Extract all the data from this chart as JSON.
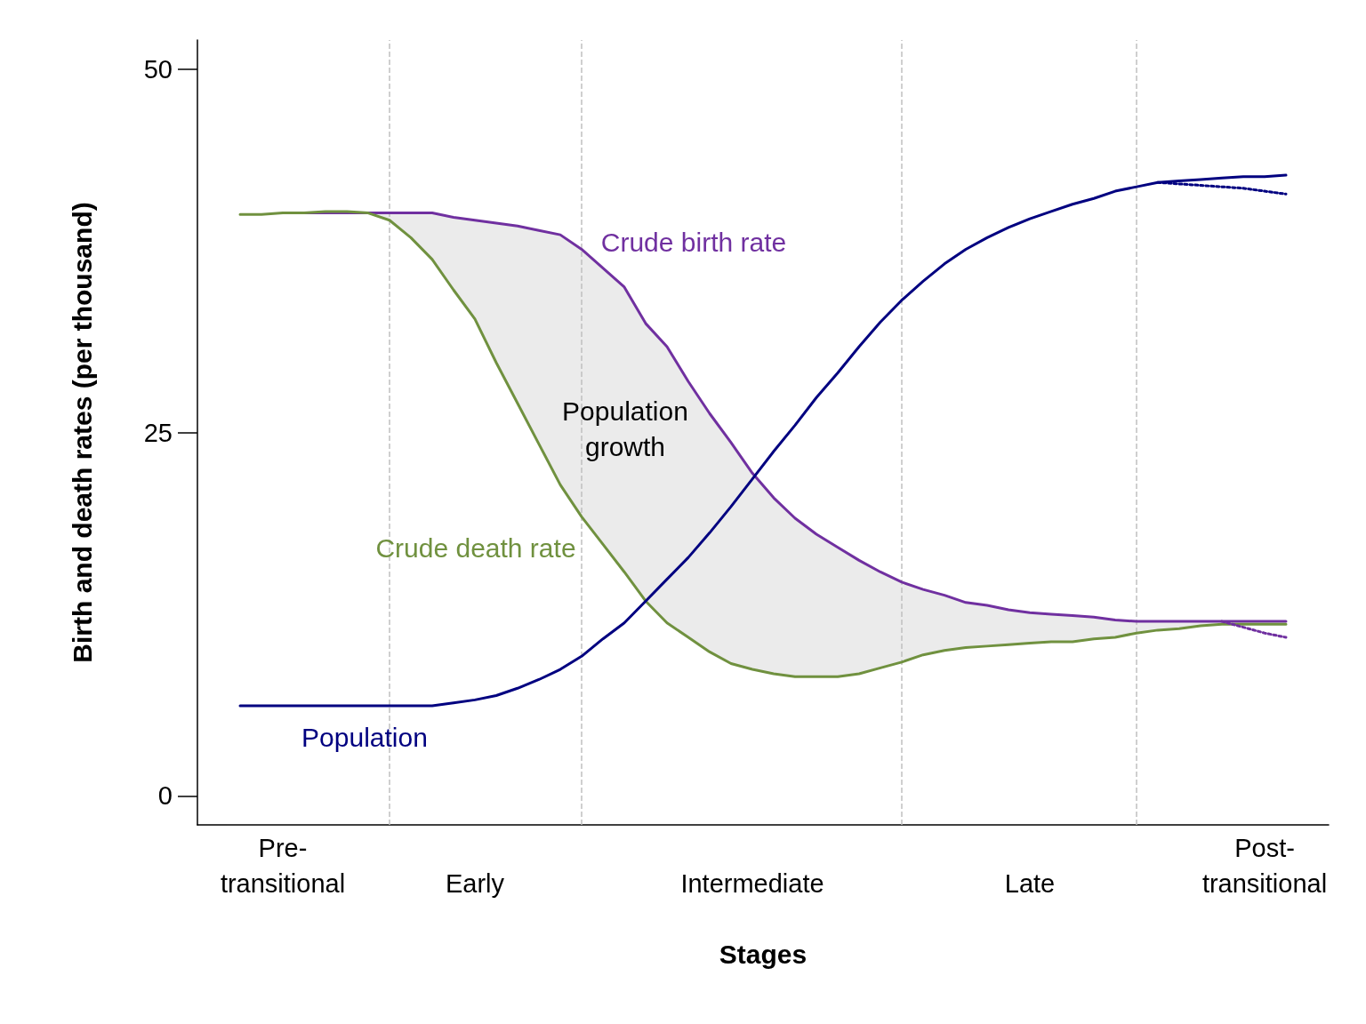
{
  "chart_data": {
    "type": "line",
    "xlabel": "Stages",
    "ylabel": "Birth and death rates (per thousand)",
    "categories": [
      null,
      null,
      null,
      null,
      "Pre-\ntransitional",
      null,
      null,
      null,
      null,
      null,
      null,
      null,
      null,
      "Early",
      null,
      null,
      null,
      null,
      null,
      null,
      null,
      null,
      null,
      null,
      null,
      null,
      "Intermediate",
      null,
      null,
      null,
      null,
      null,
      null,
      null,
      null,
      null,
      null,
      null,
      null,
      "Late",
      null,
      null,
      null,
      null,
      null,
      null,
      null,
      null,
      null,
      null,
      "Post-\ntransitional",
      null,
      null,
      null
    ],
    "ylim": [
      -2,
      52
    ],
    "yticks": [
      0,
      25,
      50
    ],
    "grid": "x",
    "legend": false,
    "marker": "none",
    "annotations": [
      "Population\ngrowth"
    ],
    "series": [
      {
        "name": "Crude birth rate",
        "color": "#7030a0",
        "line_style": "solid",
        "values": [
          null,
          null,
          null,
          null,
          40.1,
          40.1,
          40.1,
          40.1,
          40.1,
          40.1,
          40.1,
          40.1,
          39.8,
          39.6,
          39.4,
          39.2,
          38.9,
          38.6,
          37.6,
          36.3,
          35.0,
          32.5,
          30.9,
          28.5,
          26.3,
          24.3,
          22.2,
          20.5,
          19.1,
          18.0,
          17.1,
          16.2,
          15.4,
          14.7,
          14.2,
          13.8,
          13.3,
          13.1,
          12.8,
          12.6,
          12.5,
          12.4,
          12.3,
          12.1,
          12.0,
          12.0,
          12.0,
          12.0,
          12.0,
          12.0,
          12.0,
          12.0,
          null,
          null
        ],
        "lower": [
          null,
          null,
          null,
          null,
          40.1,
          40.1,
          40.2,
          40.2,
          40.1,
          39.6,
          38.4,
          36.9,
          34.8,
          32.8,
          29.8,
          27.0,
          24.2,
          21.4,
          19.2,
          17.3,
          15.4,
          13.4,
          11.9,
          10.9,
          9.9,
          9.1,
          8.7,
          8.4,
          8.2,
          8.2,
          8.2,
          8.4,
          8.8,
          9.2,
          9.7,
          10.0,
          10.2,
          10.3,
          10.4,
          10.5,
          10.6,
          10.6,
          10.8,
          10.9,
          11.2,
          11.4,
          11.5,
          11.7,
          11.8,
          11.8,
          11.8,
          11.8,
          null,
          null
        ],
        "upper": [
          null,
          null,
          null,
          null,
          40.1,
          40.1,
          40.1,
          40.1,
          40.1,
          40.1,
          40.1,
          40.1,
          39.8,
          39.6,
          39.4,
          39.2,
          38.9,
          38.6,
          37.6,
          36.3,
          35.0,
          32.5,
          30.9,
          28.5,
          26.3,
          24.3,
          22.2,
          20.5,
          19.1,
          18.0,
          17.1,
          16.2,
          15.4,
          14.7,
          14.2,
          13.8,
          13.3,
          13.1,
          12.8,
          12.6,
          12.5,
          12.4,
          12.3,
          12.1,
          12.0,
          12.0,
          12.0,
          12.0,
          12.0,
          12.0,
          12.0,
          12.0,
          null,
          null
        ]
      },
      {
        "name": "Crude death rate",
        "color": "#70913f",
        "line_style": "solid",
        "values": [
          null,
          null,
          40.0,
          40.0,
          40.1,
          40.1,
          40.2,
          40.2,
          40.1,
          39.6,
          38.4,
          36.9,
          34.8,
          32.8,
          29.8,
          27.0,
          24.2,
          21.4,
          19.2,
          17.3,
          15.4,
          13.4,
          11.9,
          10.9,
          9.9,
          9.1,
          8.7,
          8.4,
          8.2,
          8.2,
          8.2,
          8.4,
          8.8,
          9.2,
          9.7,
          10.0,
          10.2,
          10.3,
          10.4,
          10.5,
          10.6,
          10.6,
          10.8,
          10.9,
          11.2,
          11.4,
          11.5,
          11.7,
          11.8,
          11.8,
          11.8,
          11.8,
          null,
          null
        ]
      },
      {
        "name": "Population",
        "color": "#000080",
        "line_style": "solid",
        "values": [
          null,
          null,
          6.2,
          6.2,
          6.2,
          6.2,
          6.2,
          6.2,
          6.2,
          6.2,
          6.2,
          6.2,
          6.4,
          6.6,
          6.9,
          7.4,
          8.0,
          8.7,
          9.6,
          10.8,
          11.9,
          13.4,
          14.9,
          16.4,
          18.1,
          19.9,
          21.8,
          23.7,
          25.5,
          27.4,
          29.1,
          30.9,
          32.6,
          34.1,
          35.4,
          36.6,
          37.6,
          38.4,
          39.1,
          39.7,
          40.2,
          40.7,
          41.1,
          41.6,
          41.9,
          42.2,
          42.3,
          42.4,
          42.5,
          42.6,
          42.6,
          42.7,
          null,
          null
        ]
      },
      {
        "color": "#000080",
        "line_style": "dotted",
        "values": [
          null,
          null,
          null,
          null,
          null,
          null,
          null,
          null,
          null,
          null,
          null,
          null,
          null,
          null,
          null,
          null,
          null,
          null,
          null,
          null,
          null,
          null,
          null,
          null,
          null,
          null,
          null,
          null,
          null,
          null,
          null,
          null,
          null,
          null,
          null,
          null,
          null,
          null,
          null,
          null,
          null,
          null,
          null,
          null,
          null,
          42.2,
          42.1,
          42.0,
          41.9,
          41.8,
          41.6,
          41.4,
          null,
          null
        ]
      },
      {
        "color": "#7030a0",
        "line_style": "dotted",
        "values": [
          null,
          null,
          null,
          null,
          null,
          null,
          null,
          null,
          null,
          null,
          null,
          null,
          null,
          null,
          null,
          null,
          null,
          null,
          null,
          null,
          null,
          null,
          null,
          null,
          null,
          null,
          null,
          null,
          null,
          null,
          null,
          null,
          null,
          null,
          null,
          null,
          null,
          null,
          null,
          null,
          null,
          null,
          null,
          null,
          null,
          null,
          null,
          null,
          12.0,
          11.6,
          11.2,
          10.9,
          null,
          null
        ]
      }
    ]
  }
}
